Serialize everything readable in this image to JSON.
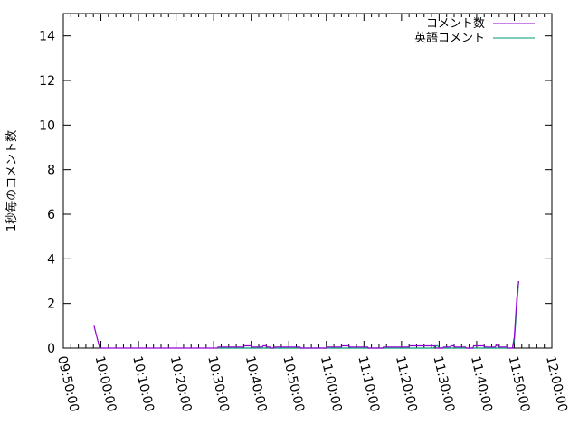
{
  "chart_data": {
    "type": "line",
    "title": "",
    "xlabel": "",
    "ylabel": "1秒毎のコメント数",
    "xlim": [
      "09:50:00",
      "12:00:00"
    ],
    "ylim": [
      0,
      15
    ],
    "xticks": [
      "09:50:00",
      "10:00:00",
      "10:10:00",
      "10:20:00",
      "10:30:00",
      "10:40:00",
      "10:50:00",
      "11:00:00",
      "11:10:00",
      "11:20:00",
      "11:30:00",
      "11:40:00",
      "11:50:00",
      "12:00:00"
    ],
    "yticks": [
      "0",
      "2",
      "4",
      "6",
      "8",
      "10",
      "12",
      "14"
    ],
    "legend": "top-right",
    "grid": false,
    "series": [
      {
        "name": "コメント数",
        "color": "#9400d3",
        "points": [
          [
            "09:58:10",
            1
          ],
          [
            "09:59:40",
            0
          ],
          [
            "10:31:00",
            0
          ],
          [
            "10:31:10",
            0.05
          ],
          [
            "10:38:00",
            0.05
          ],
          [
            "10:38:10",
            0.1
          ],
          [
            "10:40:00",
            0.1
          ],
          [
            "10:40:10",
            0.05
          ],
          [
            "10:43:00",
            0.05
          ],
          [
            "10:43:10",
            0.1
          ],
          [
            "10:44:00",
            0.1
          ],
          [
            "10:44:10",
            0.05
          ],
          [
            "10:45:00",
            0.05
          ],
          [
            "10:45:10",
            0
          ],
          [
            "10:46:00",
            0
          ],
          [
            "10:46:10",
            0.05
          ],
          [
            "10:53:00",
            0.05
          ],
          [
            "10:53:10",
            0
          ],
          [
            "11:00:00",
            0
          ],
          [
            "11:00:10",
            0.05
          ],
          [
            "11:04:00",
            0.05
          ],
          [
            "11:04:10",
            0.1
          ],
          [
            "11:06:00",
            0.1
          ],
          [
            "11:06:10",
            0.05
          ],
          [
            "11:11:00",
            0.05
          ],
          [
            "11:11:10",
            0
          ],
          [
            "11:15:00",
            0
          ],
          [
            "11:15:10",
            0.05
          ],
          [
            "11:22:00",
            0.05
          ],
          [
            "11:22:10",
            0.1
          ],
          [
            "11:29:00",
            0.1
          ],
          [
            "11:29:10",
            0
          ],
          [
            "11:31:00",
            0
          ],
          [
            "11:31:10",
            0.05
          ],
          [
            "11:33:00",
            0.05
          ],
          [
            "11:33:10",
            0.1
          ],
          [
            "11:34:00",
            0.1
          ],
          [
            "11:34:10",
            0.05
          ],
          [
            "11:37:00",
            0.05
          ],
          [
            "11:37:10",
            0
          ],
          [
            "11:39:00",
            0
          ],
          [
            "11:39:10",
            0.1
          ],
          [
            "11:42:00",
            0.1
          ],
          [
            "11:42:10",
            0.05
          ],
          [
            "11:45:00",
            0.05
          ],
          [
            "11:45:10",
            0.15
          ],
          [
            "11:46:00",
            0.05
          ],
          [
            "11:48:00",
            0.05
          ],
          [
            "11:48:10",
            0
          ],
          [
            "11:49:30",
            0
          ],
          [
            "11:50:00",
            0.5
          ],
          [
            "11:50:40",
            2.2
          ],
          [
            "11:51:10",
            3
          ]
        ]
      },
      {
        "name": "英語コメント",
        "color": "#009e73",
        "points": [
          [
            "10:31:00",
            0
          ],
          [
            "11:28:30",
            0
          ],
          [
            "11:29:00",
            0.1
          ],
          [
            "11:29:40",
            0.1
          ],
          [
            "11:30:00",
            0
          ],
          [
            "11:49:30",
            0
          ],
          [
            "11:50:00",
            0.3
          ],
          [
            "11:50:30",
            1.5
          ],
          [
            "11:50:50",
            2.2
          ],
          [
            "11:51:10",
            3
          ]
        ]
      }
    ]
  }
}
